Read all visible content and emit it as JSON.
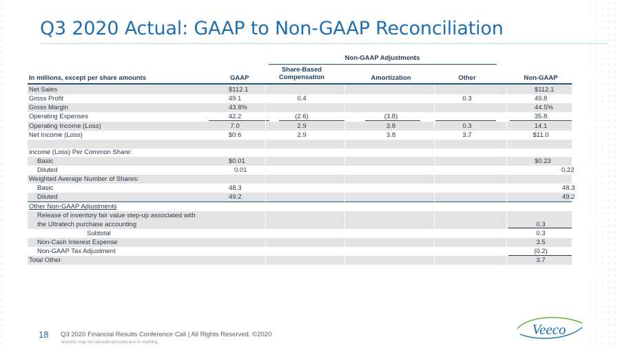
{
  "title": "Q3 2020 Actual: GAAP to Non-GAAP Reconciliation",
  "group_header": "Non-GAAP Adjustments",
  "columns": {
    "label": "In millions, except per share amounts",
    "gaap": "GAAP",
    "sbc_line1": "Share-Based",
    "sbc_line2": "Compensation",
    "amort": "Amortization",
    "other": "Other",
    "nongaap": "Non-GAAP"
  },
  "rows": [
    {
      "label": "Net Sales",
      "gaap": "$112.1",
      "sbc": "",
      "amort": "",
      "other": "",
      "nongaap": "$112.1"
    },
    {
      "label": "Gross Profit",
      "gaap": "49.1",
      "sbc": "0.4",
      "amort": "",
      "other": "0.3",
      "nongaap": "49.8"
    },
    {
      "label": "Gross Margin",
      "gaap": "43.8%",
      "sbc": "",
      "amort": "",
      "other": "",
      "nongaap": "44.5%"
    },
    {
      "label": "Operating Expenses",
      "gaap": "42.2",
      "sbc": "(2.6)",
      "amort": "(3.8)",
      "other": "",
      "nongaap": "35.8"
    },
    {
      "label": "Operating Income (Loss)",
      "gaap": "7.0",
      "sbc": "2.9",
      "amort": "3.8",
      "other": "0.3",
      "nongaap": "14.1"
    },
    {
      "label": "Net Income (Loss)",
      "gaap": "$0.6",
      "sbc": "2.9",
      "amort": "3.8",
      "other": "3.7",
      "nongaap": "$11.0"
    }
  ],
  "eps": {
    "header": "Income (Loss) Per Common Share:",
    "basic_label": "Basic",
    "basic_gaap": "$0.01",
    "basic_nongaap": "$0.23",
    "diluted_label": "Diluted",
    "diluted_gaap": "0.01",
    "diluted_nongaap": "0.22"
  },
  "shares": {
    "header": "Weighted Average Number of Shares:",
    "basic_label": "Basic",
    "basic_gaap": "48.3",
    "basic_nongaap": "48.3",
    "diluted_label": "Diluted",
    "diluted_gaap": "49.2",
    "diluted_nongaap": "49.2"
  },
  "other_adj": {
    "header": "Other Non-GAAP Adjustments",
    "release_line1": "Release of inventory fair value step-up associated with",
    "release_line2": "the Ultratech purchase accounting",
    "release_value": "0.3",
    "subtotal_label": "Subtotal",
    "subtotal_value": "0.3",
    "interest_label": "Non-Cash Interest Expense",
    "interest_value": "3.5",
    "tax_label": "Non-GAAP Tax Adjustment",
    "tax_value": "(0.2)",
    "total_label": "Total Other",
    "total_value": "3.7"
  },
  "footer": {
    "page_number": "18",
    "text": "Q3 2020 Financial Results Conference Call  |  All Rights Reserved. ©2020",
    "note": "Amounts may not calculate precisely due to rounding."
  },
  "logo_text": "Veeco",
  "colors": {
    "title": "#1e6fb0",
    "rule": "#1f4e79",
    "shade": "#e3e3e3",
    "logo": "#1e6fb0",
    "logo_accent": "#6cb33f"
  }
}
